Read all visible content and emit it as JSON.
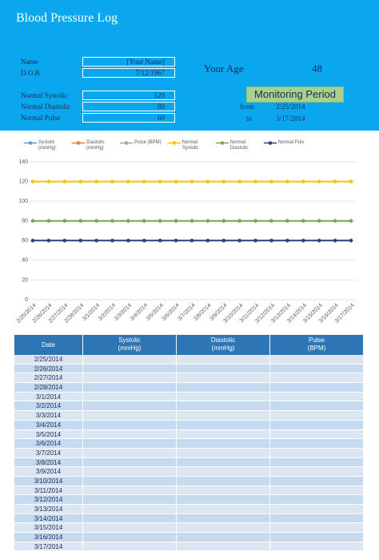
{
  "header": {
    "title": "Blood Pressure Log",
    "name_label": "Name",
    "name": "[Your Name]",
    "dob_label": "D.O.B",
    "dob": "7/12/1967",
    "age_label": "Your Age",
    "age": 48,
    "normal_systolic_label": "Normal Systolic",
    "normal_systolic": 120,
    "normal_diastolic_label": "Normal Diastolic",
    "normal_diastolic": 80,
    "normal_pulse_label": "Normal Pulse",
    "normal_pulse": 60,
    "monitoring_label": "Monitoring Period",
    "from_label": "from",
    "from": "2/25/2014",
    "to_label": "to",
    "to": "3/17/2014"
  },
  "chart_data": {
    "type": "line",
    "categories": [
      "2/25/2014",
      "2/26/2014",
      "2/27/2014",
      "2/28/2014",
      "3/1/2014",
      "3/2/2014",
      "3/3/2014",
      "3/4/2014",
      "3/5/2014",
      "3/6/2014",
      "3/7/2014",
      "3/8/2014",
      "3/9/2014",
      "3/10/2014",
      "3/11/2014",
      "3/12/2014",
      "3/13/2014",
      "3/14/2014",
      "3/15/2014",
      "3/16/2014",
      "3/17/2014"
    ],
    "series": [
      {
        "name": "Systolic (mmHg)",
        "color": "#5b9bd5",
        "values": [
          null,
          null,
          null,
          null,
          null,
          null,
          null,
          null,
          null,
          null,
          null,
          null,
          null,
          null,
          null,
          null,
          null,
          null,
          null,
          null,
          null
        ]
      },
      {
        "name": "Diastolic (mmHg)",
        "color": "#ed7d31",
        "values": [
          null,
          null,
          null,
          null,
          null,
          null,
          null,
          null,
          null,
          null,
          null,
          null,
          null,
          null,
          null,
          null,
          null,
          null,
          null,
          null,
          null
        ]
      },
      {
        "name": "Pulse (BPM)",
        "color": "#a5a5a5",
        "values": [
          null,
          null,
          null,
          null,
          null,
          null,
          null,
          null,
          null,
          null,
          null,
          null,
          null,
          null,
          null,
          null,
          null,
          null,
          null,
          null,
          null
        ]
      },
      {
        "name": "Normal Systolic",
        "color": "#ffc000",
        "values": [
          120,
          120,
          120,
          120,
          120,
          120,
          120,
          120,
          120,
          120,
          120,
          120,
          120,
          120,
          120,
          120,
          120,
          120,
          120,
          120,
          120
        ]
      },
      {
        "name": "Normal Diastolic",
        "color": "#70ad47",
        "values": [
          80,
          80,
          80,
          80,
          80,
          80,
          80,
          80,
          80,
          80,
          80,
          80,
          80,
          80,
          80,
          80,
          80,
          80,
          80,
          80,
          80
        ]
      },
      {
        "name": "Normal Puls",
        "color": "#264478",
        "values": [
          60,
          60,
          60,
          60,
          60,
          60,
          60,
          60,
          60,
          60,
          60,
          60,
          60,
          60,
          60,
          60,
          60,
          60,
          60,
          60,
          60
        ]
      }
    ],
    "ylim": [
      0,
      140
    ],
    "yticks": [
      0,
      20,
      40,
      60,
      80,
      100,
      120,
      140
    ],
    "grid": true,
    "legend": "top"
  },
  "table": {
    "columns": [
      [
        "Date"
      ],
      [
        "Systolic",
        "(mmHg)"
      ],
      [
        "Diastolic",
        "(mmHg)"
      ],
      [
        "Pulse",
        "(BPM)"
      ]
    ],
    "dates": [
      "2/25/2014",
      "2/26/2014",
      "2/27/2014",
      "2/28/2014",
      "3/1/2014",
      "3/2/2014",
      "3/3/2014",
      "3/4/2014",
      "3/5/2014",
      "3/6/2014",
      "3/7/2014",
      "3/8/2014",
      "3/9/2014",
      "3/10/2014",
      "3/11/2014",
      "3/12/2014",
      "3/13/2014",
      "3/14/2014",
      "3/15/2014",
      "3/16/2014",
      "3/17/2014"
    ]
  }
}
